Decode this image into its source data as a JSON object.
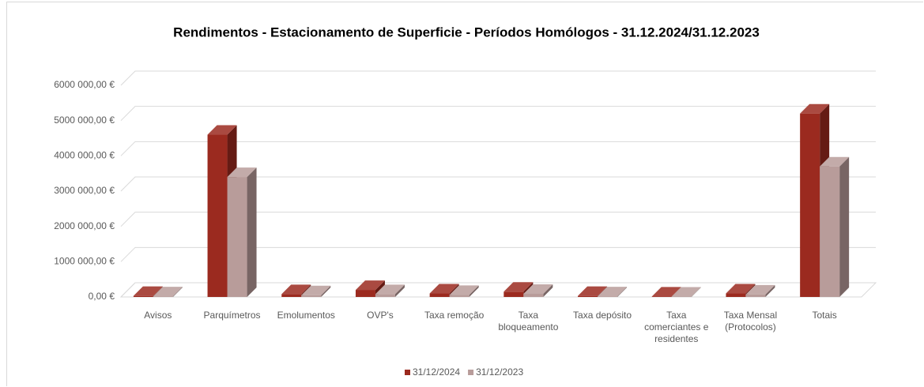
{
  "chart_data": {
    "type": "bar3d",
    "title": "Rendimentos - Estacionamento de Superficie - Períodos Homólogos -  31.12.2024/31.12.2023",
    "categories": [
      "Avisos",
      "Parquímetros",
      "Emolumentos",
      "OVP's",
      "Taxa remoção",
      "Taxa bloqueamento",
      "Taxa depósito",
      "Taxa comerciantes e residentes",
      "Taxa Mensal (Protocolos)",
      "Totais"
    ],
    "series": [
      {
        "name": "31/12/2024",
        "color": "#9b2a1f",
        "values": [
          30000,
          4600000,
          80000,
          200000,
          100000,
          150000,
          30000,
          15000,
          100000,
          5200000
        ]
      },
      {
        "name": "31/12/2023",
        "color": "#b89c9a",
        "values": [
          20000,
          3400000,
          50000,
          80000,
          60000,
          90000,
          20000,
          10000,
          70000,
          3700000
        ]
      }
    ],
    "ylim": [
      0,
      6000000
    ],
    "yticks": [
      {
        "value": 0,
        "label": "0,00 €"
      },
      {
        "value": 1000000,
        "label": "1000 000,00 €"
      },
      {
        "value": 2000000,
        "label": "2000 000,00 €"
      },
      {
        "value": 3000000,
        "label": "3000 000,00 €"
      },
      {
        "value": 4000000,
        "label": "4000 000,00 €"
      },
      {
        "value": 5000000,
        "label": "5000 000,00 €"
      },
      {
        "value": 6000000,
        "label": "6000 000,00 €"
      }
    ],
    "grid": true,
    "legend": "bottom"
  }
}
